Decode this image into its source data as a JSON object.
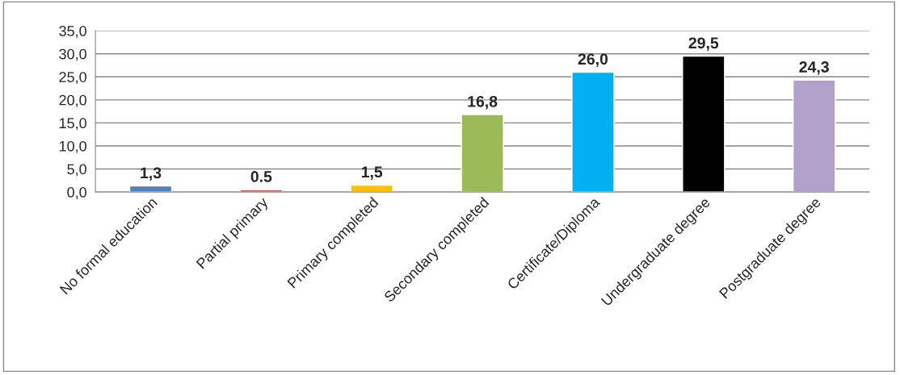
{
  "chart_data": {
    "type": "bar",
    "categories": [
      "No formal education",
      "Partial primary",
      "Primary completed",
      "Secondary completed",
      "Certificate/Diploma",
      "Undergraduate degree",
      "Postgraduate degree"
    ],
    "values": [
      1.3,
      0.5,
      1.5,
      16.8,
      26.0,
      29.5,
      24.3
    ],
    "colors": [
      "#4f81bd",
      "#c0504d",
      "#ffc000",
      "#9bbb59",
      "#00b0f0",
      "#000000",
      "#b1a0c7"
    ],
    "value_labels": [
      "1,3",
      "0.5",
      "1,5",
      "16,8",
      "26,0",
      "29,5",
      "24,3"
    ],
    "ylim": [
      0,
      35
    ],
    "yticks": [
      {
        "value": 0,
        "label": "0,0"
      },
      {
        "value": 5,
        "label": "5,0"
      },
      {
        "value": 10,
        "label": "10,0"
      },
      {
        "value": 15,
        "label": "15,0"
      },
      {
        "value": 20,
        "label": "20,0"
      },
      {
        "value": 25,
        "label": "25,0"
      },
      {
        "value": 30,
        "label": "30,0"
      },
      {
        "value": 35,
        "label": "35,0"
      }
    ],
    "grid": "y",
    "legend": false
  }
}
